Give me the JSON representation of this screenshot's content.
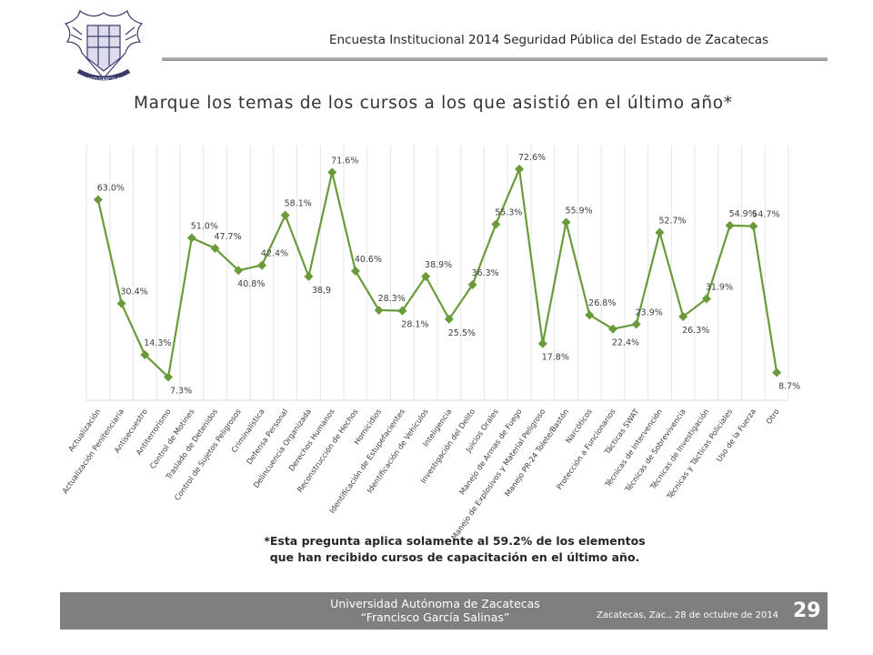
{
  "header": {
    "title": "Encuesta Institucional 2014 Seguridad Pública del Estado de Zacatecas",
    "logo_text": "FRANCISCO GARCÍA SALINAS"
  },
  "page_title": "Marque los temas de los cursos a los que asistió en el último año*",
  "chart_data": {
    "type": "line",
    "line_color": "#6a9a3a",
    "marker": "diamond",
    "grid": "vertical",
    "legend": "none",
    "ylim": [
      0,
      80
    ],
    "categories": [
      "Actualización",
      "Actualización Penitenciaria",
      "Antisecuestro",
      "Antiterrorismo",
      "Control de Motines",
      "Traslado de Detenidos",
      "Control de Sujetos Peligrosos",
      "Criminalística",
      "Defensa Personal",
      "Delincuencia Organizada",
      "Derechos Humanos",
      "Reconstrucción de Hechos",
      "Homicidios",
      "Identificación de Estupefacientes",
      "Identificación de Vehículos",
      "Inteligencia",
      "Investigación del Delito",
      "Juicios Orales",
      "Manejo de Armas de Fuego",
      "Manejo de Explosivos y Material Peligroso",
      "Manejo PR-24 Tolete/Bastón",
      "Narcóticos",
      "Protección a Funcionarios",
      "Tácticas SWAT",
      "Técnicas de Intervención",
      "Técnicas de Sobrevivencia",
      "Técnicas de Investigación",
      "Técnicas y Tácticas Policiales",
      "Uso de la Fuerza",
      "Otro"
    ],
    "values": [
      63.0,
      30.4,
      14.3,
      7.3,
      51.0,
      47.7,
      40.8,
      42.4,
      58.1,
      38.9,
      71.6,
      40.6,
      28.3,
      28.1,
      38.9,
      25.5,
      36.3,
      55.3,
      72.6,
      17.8,
      55.9,
      26.8,
      22.4,
      23.9,
      52.7,
      26.3,
      31.9,
      54.9,
      54.7,
      8.7
    ],
    "data_labels": [
      "63.0%",
      "30.4%",
      "14.3%",
      "7.3%",
      "51.0%",
      "47.7%",
      "40.8%",
      "42.4%",
      "58.1%",
      "38,9",
      "71.6%",
      "40.6%",
      "28.3%",
      "28.1%",
      "38.9%",
      "25.5%",
      "36.3%",
      "55.3%",
      "72.6%",
      "17.8%",
      "55.9%",
      "26.8%",
      "22.4%",
      "23.9%",
      "52.7%",
      "26.3%",
      "31.9%",
      "54.9%",
      "54.7%",
      "8.7%"
    ]
  },
  "note": {
    "line1": "*Esta pregunta aplica solamente al 59.2% de los elementos",
    "line2": "que han recibido cursos de capacitación en el último año."
  },
  "footer": {
    "university": "Universidad Autónoma de Zacatecas",
    "motto": "“Francisco García Salinas”",
    "date": "Zacatecas, Zac., 28 de octubre de 2014",
    "page": "29"
  }
}
